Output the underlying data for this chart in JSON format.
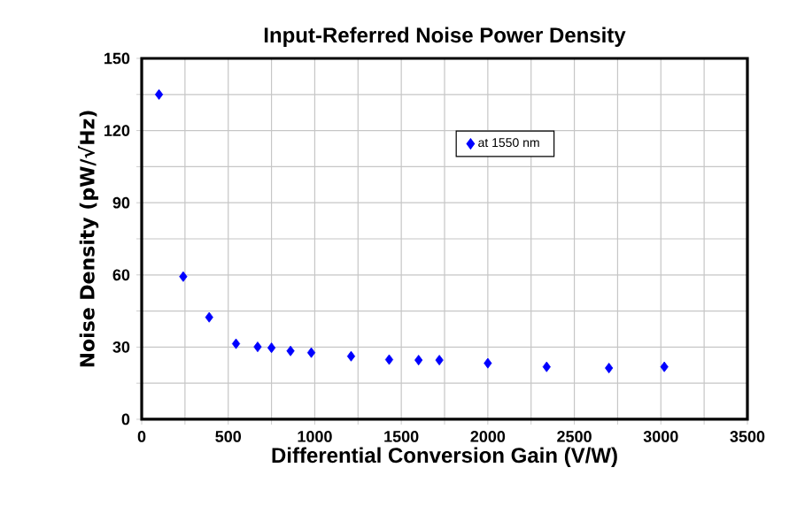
{
  "chart_data": {
    "type": "scatter",
    "title": "Input-Referred Noise Power Density",
    "xlabel": "Differential Conversion Gain (V/W)",
    "ylabel": "Noise Density (pW/√Hz)",
    "x": [
      100,
      240,
      390,
      545,
      670,
      750,
      860,
      980,
      1210,
      1430,
      1600,
      1720,
      2000,
      2340,
      2700,
      3020
    ],
    "series": [
      {
        "name": "at 1550 nm",
        "color": "#0000ff",
        "values": [
          135,
          59.3,
          42.4,
          31.4,
          30.1,
          29.7,
          28.4,
          27.7,
          26.2,
          24.8,
          24.6,
          24.6,
          23.3,
          21.8,
          21.3,
          21.8
        ]
      }
    ],
    "xlim": [
      0,
      3500
    ],
    "ylim": [
      0,
      150
    ],
    "xticks": [
      0,
      {
        "value": 250,
        "label": null
      },
      500,
      {
        "value": 750,
        "label": null
      },
      1000,
      {
        "value": 1250,
        "label": null
      },
      1500,
      {
        "value": 1750,
        "label": null
      },
      2000,
      {
        "value": 2250,
        "label": null
      },
      2500,
      {
        "value": 2750,
        "label": null
      },
      3000,
      {
        "value": 3250,
        "label": null
      },
      3500
    ],
    "yticks": [
      0,
      {
        "value": 15,
        "label": null
      },
      30,
      {
        "value": 45,
        "label": null
      },
      60,
      {
        "value": 75,
        "label": null
      },
      90,
      {
        "value": 105,
        "label": null
      },
      120,
      {
        "value": 135,
        "label": null
      },
      150
    ],
    "grid": true,
    "legend": "top right",
    "marker": "diamond"
  }
}
